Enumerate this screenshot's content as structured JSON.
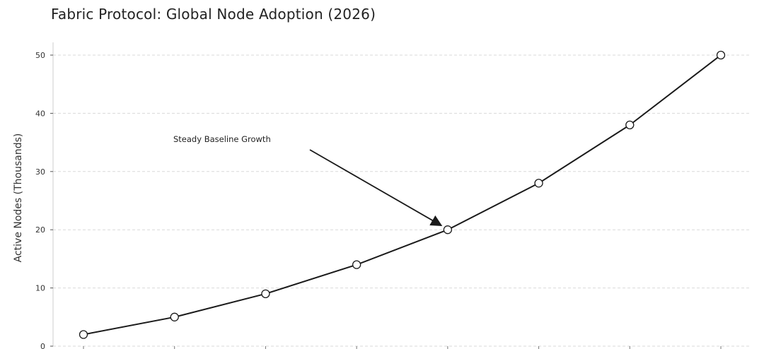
{
  "chart_data": {
    "type": "line",
    "title": "Fabric Protocol: Global Node Adoption (2026)",
    "ylabel": "Active Nodes (Thousands)",
    "xlabel": "",
    "ylim": [
      0,
      50
    ],
    "yticks": [
      0,
      10,
      20,
      30,
      40,
      50
    ],
    "grid": true,
    "series": [
      {
        "values": [
          2,
          5,
          9,
          14,
          20,
          28,
          38,
          50
        ]
      }
    ],
    "annotations": [
      {
        "text": "Steady Baseline Growth",
        "point_index": 4
      }
    ],
    "colors": {
      "line": "#1a1a1a",
      "marker_fill": "#ffffff",
      "grid": "#d9d9d9",
      "axis": "#cccccc"
    }
  }
}
